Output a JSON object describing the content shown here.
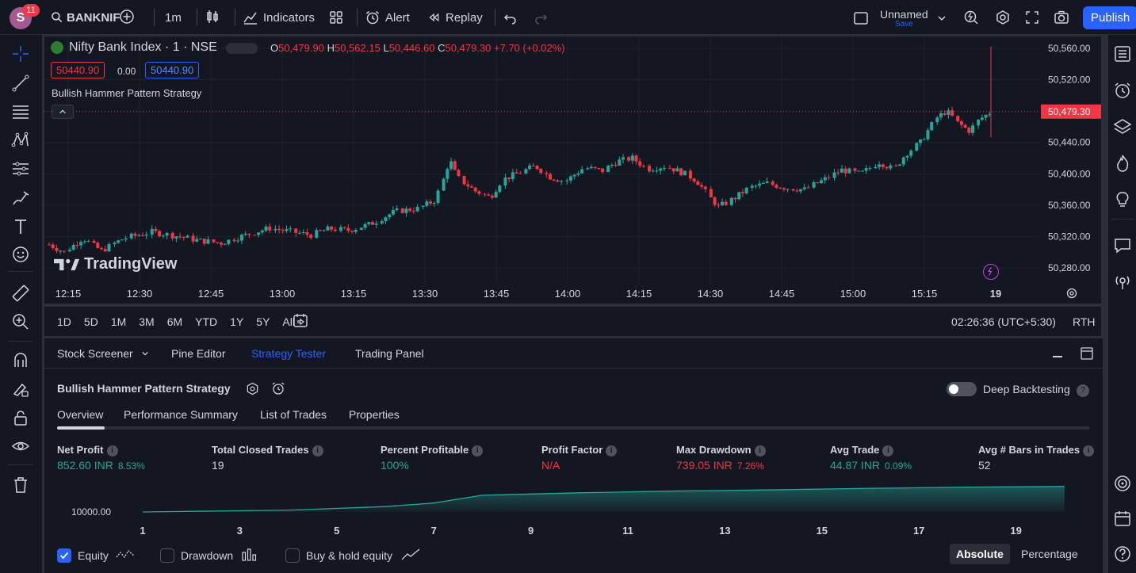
{
  "topbar": {
    "avatar_letter": "S",
    "notification_count": "11",
    "symbol": "BANKNIF",
    "interval": "1m",
    "indicators_label": "Indicators",
    "alert_label": "Alert",
    "replay_label": "Replay",
    "layout_name": "Unnamed",
    "save_label": "Save",
    "publish_label": "Publish"
  },
  "legend": {
    "title": "Nifty Bank Index · 1 · NSE",
    "ohlc": {
      "o_label": "O",
      "o_value": "50,479.90",
      "h_label": "H",
      "h_value": "50,562.15",
      "l_label": "L",
      "l_value": "50,446.60",
      "c_label": "C",
      "c_value": "50,479.30",
      "change": "+7.70 (+0.02%)"
    },
    "sell_price": "50440.90",
    "spread": "0.00",
    "buy_price": "50440.90",
    "strategy_name": "Bullish Hammer Pattern Strategy"
  },
  "watermark": "TradingView",
  "chart_data": {
    "type": "candlestick",
    "price_axis": [
      "50,560.00",
      "50,520.00",
      "50,479.30",
      "50,440.00",
      "50,400.00",
      "50,360.00",
      "50,320.00",
      "50,280.00"
    ],
    "time_axis": [
      "12:15",
      "12:30",
      "12:45",
      "13:00",
      "13:15",
      "13:30",
      "13:45",
      "14:00",
      "14:15",
      "14:30",
      "14:45",
      "15:00",
      "15:15",
      "19"
    ],
    "last_price": "50,479.30",
    "ylim": [
      50260,
      50575
    ],
    "trend": [
      [
        0,
        50310
      ],
      [
        8,
        50300
      ],
      [
        18,
        50318
      ],
      [
        28,
        50302
      ],
      [
        40,
        50318
      ],
      [
        55,
        50326
      ],
      [
        70,
        50320
      ],
      [
        80,
        50315
      ],
      [
        92,
        50312
      ],
      [
        105,
        50322
      ],
      [
        118,
        50331
      ],
      [
        130,
        50326
      ],
      [
        140,
        50322
      ],
      [
        150,
        50330
      ],
      [
        160,
        50328
      ],
      [
        172,
        50336
      ],
      [
        185,
        50352
      ],
      [
        198,
        50356
      ],
      [
        206,
        50366
      ],
      [
        212,
        50398
      ],
      [
        214,
        50420
      ],
      [
        218,
        50396
      ],
      [
        228,
        50378
      ],
      [
        236,
        50370
      ],
      [
        242,
        50392
      ],
      [
        252,
        50402
      ],
      [
        260,
        50410
      ],
      [
        268,
        50396
      ],
      [
        276,
        50390
      ],
      [
        286,
        50408
      ],
      [
        296,
        50404
      ],
      [
        304,
        50416
      ],
      [
        312,
        50420
      ],
      [
        320,
        50406
      ],
      [
        330,
        50410
      ],
      [
        340,
        50400
      ],
      [
        346,
        50392
      ],
      [
        352,
        50374
      ],
      [
        358,
        50358
      ],
      [
        366,
        50368
      ],
      [
        374,
        50382
      ],
      [
        384,
        50388
      ],
      [
        394,
        50382
      ],
      [
        404,
        50380
      ],
      [
        414,
        50392
      ],
      [
        424,
        50405
      ],
      [
        434,
        50400
      ],
      [
        444,
        50415
      ],
      [
        452,
        50405
      ],
      [
        458,
        50425
      ],
      [
        466,
        50440
      ],
      [
        474,
        50470
      ],
      [
        480,
        50480
      ],
      [
        486,
        50465
      ],
      [
        492,
        50455
      ],
      [
        498,
        50470
      ],
      [
        504,
        50479
      ]
    ]
  },
  "range_buttons": [
    "1D",
    "5D",
    "1M",
    "3M",
    "6M",
    "YTD",
    "1Y",
    "5Y",
    "All"
  ],
  "clock": "02:26:36 (UTC+5:30)",
  "session": "RTH",
  "panel": {
    "tabs": [
      "Stock Screener",
      "Pine Editor",
      "Strategy Tester",
      "Trading Panel"
    ],
    "strategy_title": "Bullish Hammer Pattern Strategy",
    "deep_backtesting_label": "Deep Backtesting",
    "subtabs": [
      "Overview",
      "Performance Summary",
      "List of Trades",
      "Properties"
    ],
    "metrics": {
      "net_profit": {
        "label": "Net Profit",
        "value": "852.60 INR",
        "pct": "8.53%"
      },
      "total_closed_trades": {
        "label": "Total Closed Trades",
        "value": "19"
      },
      "percent_profitable": {
        "label": "Percent Profitable",
        "value": "100%"
      },
      "profit_factor": {
        "label": "Profit Factor",
        "value": "N/A"
      },
      "max_drawdown": {
        "label": "Max Drawdown",
        "value": "739.05 INR",
        "pct": "7.26%"
      },
      "avg_trade": {
        "label": "Avg Trade",
        "value": "44.87 INR",
        "pct": "0.09%"
      },
      "avg_bars": {
        "label": "Avg # Bars in Trades",
        "value": "52"
      }
    },
    "equity_chart": {
      "y_label": "10000.00",
      "x_ticks": [
        "1",
        "3",
        "5",
        "7",
        "9",
        "11",
        "13",
        "15",
        "17",
        "19"
      ],
      "equity": [
        [
          1,
          10000
        ],
        [
          4,
          10060
        ],
        [
          6,
          10180
        ],
        [
          7,
          10300
        ],
        [
          8,
          10560
        ],
        [
          10,
          10640
        ],
        [
          12,
          10700
        ],
        [
          14,
          10740
        ],
        [
          16,
          10790
        ],
        [
          18,
          10830
        ],
        [
          20,
          10852
        ]
      ]
    },
    "checkboxes": {
      "equity": "Equity",
      "drawdown": "Drawdown",
      "buy_hold": "Buy & hold equity"
    },
    "modes": {
      "absolute": "Absolute",
      "percentage": "Percentage"
    },
    "colors": {
      "up": "#26a69a",
      "down": "#f23645",
      "accent": "#2962ff"
    }
  }
}
